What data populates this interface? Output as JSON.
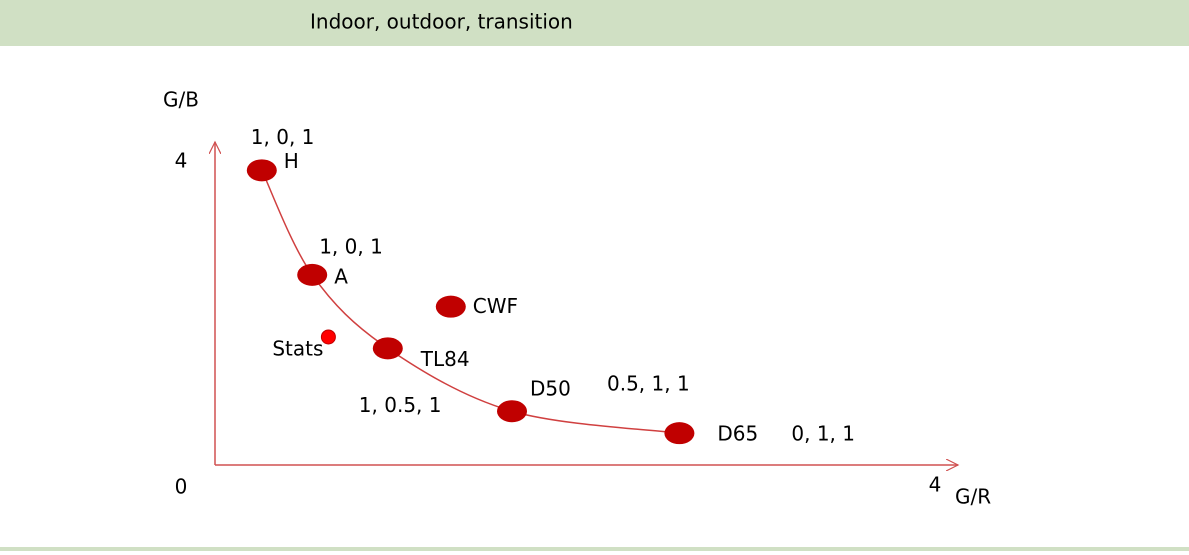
{
  "chart_data": {
    "type": "scatter",
    "title": "Indoor, outdoor, transition",
    "xlabel": "G/R",
    "ylabel": "G/B",
    "xlim": [
      0,
      4
    ],
    "ylim": [
      0,
      4
    ],
    "xticks": [
      4
    ],
    "yticks": [
      0,
      4
    ],
    "color": "#c00000",
    "categories": [
      "H",
      "A",
      "TL84",
      "D50",
      "D65",
      "CWF"
    ],
    "x": [
      0.26,
      0.54,
      0.96,
      1.65,
      2.58,
      1.31
    ],
    "values": [
      3.89,
      2.51,
      1.54,
      0.71,
      0.42,
      2.09
    ],
    "annotations": [
      "1, 0, 1",
      "1, 0, 1",
      "1, 0.5, 1",
      "0.5, 1, 1",
      "0, 1, 1",
      null
    ],
    "stats": {
      "label": "Stats",
      "x": 0.63,
      "y": 1.69,
      "color": "#ff0000"
    }
  }
}
